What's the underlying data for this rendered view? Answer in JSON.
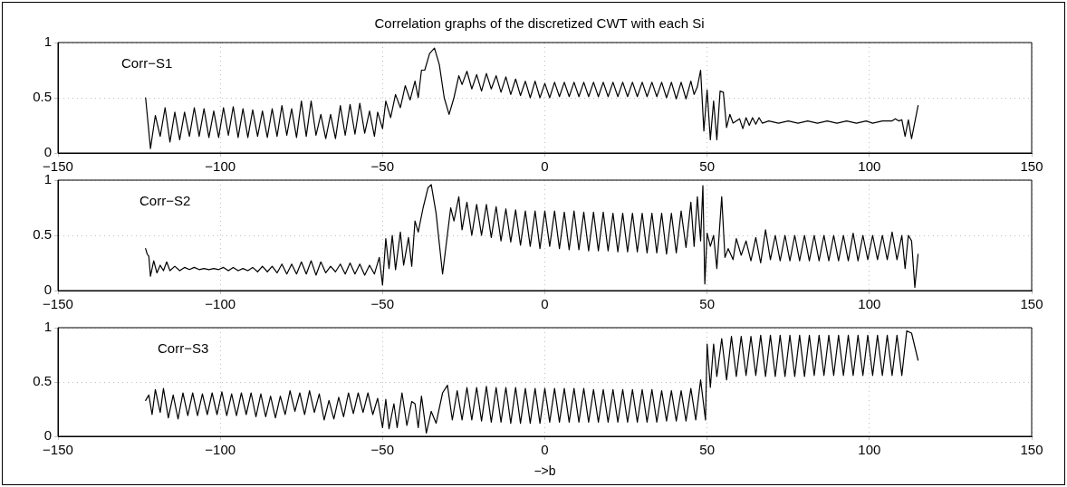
{
  "chart_data": [
    {
      "type": "line",
      "title": "Correlation graphs of the discretized CWT with each Si",
      "xlim": [
        -150,
        150
      ],
      "xticks": [
        -150,
        -100,
        -50,
        0,
        50,
        100,
        150
      ],
      "ylim": [
        0,
        1
      ],
      "yticks": [
        0,
        0.5,
        1
      ],
      "grid": true,
      "series": [
        {
          "name": "Corr−S1",
          "color": "#000000",
          "x": [
            -123,
            -121.5,
            -120,
            -118.5,
            -117,
            -115.5,
            -114,
            -112.5,
            -111,
            -109.5,
            -108,
            -106.5,
            -105,
            -103.5,
            -102,
            -100.5,
            -99,
            -97.5,
            -96,
            -94.5,
            -93,
            -91.5,
            -90,
            -88.5,
            -87,
            -85.5,
            -84,
            -82.5,
            -81,
            -79.5,
            -78,
            -76.5,
            -75,
            -73.5,
            -72,
            -70.5,
            -69,
            -67.5,
            -66,
            -64.5,
            -63,
            -61.5,
            -60,
            -58.5,
            -57,
            -55.5,
            -54,
            -52.5,
            -51.5,
            -50,
            -49,
            -47.5,
            -46,
            -44.5,
            -43,
            -41.5,
            -40,
            -39,
            -38,
            -37,
            -35.5,
            -34,
            -32.5,
            -31,
            -29.5,
            -28,
            -26.5,
            -25.5,
            -24,
            -22.5,
            -21,
            -19.5,
            -18,
            -16.5,
            -15,
            -13.5,
            -12,
            -10.5,
            -9,
            -7.5,
            -6,
            -4.5,
            -3,
            -1.5,
            0,
            1.5,
            3,
            4.5,
            6,
            7.5,
            9,
            10.5,
            12,
            13.5,
            15,
            16.5,
            18,
            19.5,
            21,
            22.5,
            24,
            25.5,
            27,
            28.5,
            30,
            31.5,
            33,
            34.5,
            36,
            37.5,
            39,
            40.5,
            42,
            43.5,
            45,
            46,
            47,
            48,
            49,
            50,
            51,
            52,
            53,
            54,
            55,
            56,
            57,
            58,
            60,
            61,
            62,
            63,
            64,
            65,
            66,
            67,
            69,
            72,
            75,
            78,
            81,
            84,
            87,
            90,
            93,
            96,
            99,
            101,
            104,
            107,
            108,
            109,
            110,
            111,
            112,
            113,
            115
          ],
          "values": [
            0.5,
            0.04,
            0.34,
            0.15,
            0.41,
            0.1,
            0.37,
            0.12,
            0.37,
            0.15,
            0.41,
            0.15,
            0.4,
            0.14,
            0.38,
            0.14,
            0.41,
            0.16,
            0.42,
            0.14,
            0.4,
            0.14,
            0.39,
            0.15,
            0.38,
            0.14,
            0.4,
            0.15,
            0.43,
            0.16,
            0.4,
            0.14,
            0.47,
            0.15,
            0.47,
            0.16,
            0.35,
            0.13,
            0.35,
            0.13,
            0.43,
            0.16,
            0.44,
            0.17,
            0.45,
            0.18,
            0.38,
            0.15,
            0.37,
            0.22,
            0.47,
            0.32,
            0.53,
            0.41,
            0.61,
            0.48,
            0.65,
            0.5,
            0.75,
            0.75,
            0.9,
            0.95,
            0.8,
            0.5,
            0.35,
            0.5,
            0.7,
            0.62,
            0.74,
            0.58,
            0.71,
            0.56,
            0.72,
            0.58,
            0.7,
            0.55,
            0.69,
            0.53,
            0.67,
            0.52,
            0.65,
            0.5,
            0.65,
            0.5,
            0.63,
            0.5,
            0.64,
            0.51,
            0.64,
            0.51,
            0.64,
            0.51,
            0.64,
            0.51,
            0.64,
            0.51,
            0.64,
            0.51,
            0.64,
            0.51,
            0.64,
            0.51,
            0.64,
            0.51,
            0.64,
            0.51,
            0.64,
            0.51,
            0.64,
            0.5,
            0.64,
            0.49,
            0.64,
            0.49,
            0.65,
            0.53,
            0.6,
            0.75,
            0.2,
            0.57,
            0.12,
            0.47,
            0.12,
            0.56,
            0.55,
            0.23,
            0.35,
            0.27,
            0.31,
            0.22,
            0.32,
            0.25,
            0.32,
            0.26,
            0.32,
            0.27,
            0.29,
            0.27,
            0.29,
            0.27,
            0.29,
            0.27,
            0.29,
            0.27,
            0.29,
            0.27,
            0.29,
            0.27,
            0.29,
            0.29,
            0.31,
            0.29,
            0.3,
            0.15,
            0.3,
            0.13,
            0.43
          ]
        }
      ]
    },
    {
      "type": "line",
      "xlim": [
        -150,
        150
      ],
      "xticks": [
        -150,
        -100,
        -50,
        0,
        50,
        100,
        150
      ],
      "ylim": [
        0,
        1
      ],
      "yticks": [
        0,
        0.5,
        1
      ],
      "grid": true,
      "series": [
        {
          "name": "Corr−S2",
          "color": "#000000",
          "x": [
            -123,
            -122.5,
            -122,
            -121.5,
            -120.5,
            -119.5,
            -118.5,
            -117.5,
            -116.5,
            -115.5,
            -114,
            -112.5,
            -111,
            -109.5,
            -108,
            -106.5,
            -105,
            -103.5,
            -102,
            -100.5,
            -99,
            -97.5,
            -96,
            -94.5,
            -93,
            -91.5,
            -90,
            -88.5,
            -87,
            -85.5,
            -84,
            -82.5,
            -81,
            -79.5,
            -78,
            -76.5,
            -75,
            -73.5,
            -72,
            -70.5,
            -69,
            -67.5,
            -66,
            -64.5,
            -63,
            -61.5,
            -60,
            -58.5,
            -57,
            -55.5,
            -54,
            -52.5,
            -51,
            -50,
            -49,
            -48,
            -47,
            -46,
            -44.5,
            -43.5,
            -42,
            -41,
            -40,
            -39,
            -37.5,
            -36,
            -35,
            -33.5,
            -31.5,
            -29,
            -28,
            -26.5,
            -25.5,
            -24,
            -22.5,
            -21,
            -19.5,
            -18,
            -16.5,
            -15,
            -13.5,
            -12,
            -10.5,
            -9,
            -7.5,
            -6,
            -4.5,
            -3,
            -1.5,
            0,
            1.5,
            3,
            4.5,
            6,
            7.5,
            9,
            10.5,
            12,
            13.5,
            15,
            16.5,
            18,
            19.5,
            21,
            22.5,
            24,
            25.5,
            27,
            28.5,
            30,
            31.5,
            33,
            34.5,
            36,
            37.5,
            39,
            40.5,
            42,
            43.5,
            45,
            46,
            47,
            48,
            48.7,
            49.3,
            50,
            51,
            52,
            53,
            54.5,
            55.5,
            56.5,
            58,
            59,
            60.5,
            62,
            63.5,
            65,
            66.5,
            68,
            69.5,
            71,
            72.5,
            74,
            75.5,
            77,
            78.5,
            80,
            81.5,
            83,
            84.5,
            86,
            87.5,
            89,
            90.5,
            92,
            93.5,
            95,
            96.5,
            98,
            99.5,
            101,
            102.5,
            104,
            105.5,
            107,
            108.5,
            110,
            111,
            112,
            113,
            114,
            115
          ],
          "values": [
            0.38,
            0.33,
            0.31,
            0.13,
            0.27,
            0.16,
            0.23,
            0.18,
            0.26,
            0.18,
            0.22,
            0.18,
            0.21,
            0.19,
            0.21,
            0.19,
            0.2,
            0.19,
            0.2,
            0.19,
            0.21,
            0.18,
            0.21,
            0.18,
            0.2,
            0.18,
            0.21,
            0.17,
            0.22,
            0.17,
            0.22,
            0.16,
            0.24,
            0.15,
            0.24,
            0.15,
            0.26,
            0.15,
            0.27,
            0.14,
            0.26,
            0.16,
            0.22,
            0.17,
            0.24,
            0.15,
            0.25,
            0.15,
            0.24,
            0.14,
            0.23,
            0.15,
            0.3,
            0.05,
            0.47,
            0.2,
            0.5,
            0.19,
            0.53,
            0.23,
            0.48,
            0.22,
            0.63,
            0.53,
            0.75,
            0.93,
            0.96,
            0.7,
            0.15,
            0.75,
            0.63,
            0.85,
            0.55,
            0.8,
            0.5,
            0.78,
            0.5,
            0.78,
            0.48,
            0.76,
            0.45,
            0.74,
            0.44,
            0.73,
            0.41,
            0.72,
            0.4,
            0.72,
            0.38,
            0.72,
            0.4,
            0.72,
            0.38,
            0.71,
            0.37,
            0.72,
            0.37,
            0.71,
            0.36,
            0.71,
            0.36,
            0.71,
            0.36,
            0.7,
            0.35,
            0.7,
            0.35,
            0.7,
            0.35,
            0.7,
            0.34,
            0.7,
            0.34,
            0.7,
            0.33,
            0.7,
            0.34,
            0.72,
            0.39,
            0.8,
            0.4,
            0.85,
            0.45,
            0.95,
            0.06,
            0.52,
            0.4,
            0.5,
            0.2,
            0.85,
            0.3,
            0.38,
            0.28,
            0.47,
            0.32,
            0.45,
            0.27,
            0.48,
            0.25,
            0.55,
            0.28,
            0.5,
            0.27,
            0.5,
            0.27,
            0.5,
            0.27,
            0.5,
            0.27,
            0.5,
            0.27,
            0.5,
            0.27,
            0.5,
            0.27,
            0.5,
            0.27,
            0.52,
            0.27,
            0.5,
            0.28,
            0.5,
            0.28,
            0.5,
            0.28,
            0.53,
            0.28,
            0.5,
            0.2,
            0.5,
            0.45,
            0.03,
            0.33
          ]
        }
      ]
    },
    {
      "type": "line",
      "xlabel": "−>b",
      "xlim": [
        -150,
        150
      ],
      "xticks": [
        -150,
        -100,
        -50,
        0,
        50,
        100,
        150
      ],
      "ylim": [
        0,
        1
      ],
      "yticks": [
        0,
        0.5,
        1
      ],
      "grid": true,
      "series": [
        {
          "name": "Corr−S3",
          "color": "#000000",
          "x": [
            -123,
            -122,
            -121,
            -120,
            -118.5,
            -117.5,
            -116,
            -114.5,
            -113,
            -111.5,
            -110,
            -108.5,
            -107,
            -105.5,
            -104,
            -102.5,
            -101,
            -99.5,
            -98,
            -96.5,
            -95,
            -93.5,
            -92,
            -90.5,
            -89,
            -87.5,
            -86,
            -84.5,
            -83,
            -81.5,
            -80,
            -78.5,
            -77,
            -75.5,
            -74,
            -72.5,
            -71,
            -69.5,
            -68,
            -66.5,
            -65,
            -63.5,
            -62,
            -60.5,
            -59,
            -57.5,
            -56,
            -54.5,
            -53,
            -51.5,
            -50,
            -49,
            -48,
            -46.5,
            -45.5,
            -44,
            -42.5,
            -41,
            -40,
            -39,
            -38,
            -36.5,
            -35,
            -33.5,
            -31.5,
            -30,
            -28.5,
            -27,
            -25.5,
            -24,
            -22.5,
            -21,
            -19.5,
            -18,
            -16.5,
            -15,
            -13.5,
            -12,
            -10.5,
            -9,
            -7.5,
            -6,
            -4.5,
            -3,
            -1.5,
            0,
            1.5,
            3,
            4.5,
            6,
            7.5,
            9,
            10.5,
            12,
            13.5,
            15,
            16.5,
            18,
            19.5,
            21,
            22.5,
            24,
            25.5,
            27,
            28.5,
            30,
            31.5,
            33,
            34.5,
            36,
            37.5,
            39,
            40.5,
            42,
            43.5,
            45,
            46.5,
            48,
            49.5,
            50,
            51,
            52,
            53,
            54.5,
            56,
            57.5,
            59,
            60.5,
            62,
            63.5,
            65,
            66.5,
            68,
            69.5,
            71,
            72.5,
            74,
            75.5,
            77,
            78.5,
            80,
            81.5,
            83,
            84.5,
            86,
            87.5,
            89,
            90.5,
            92,
            93.5,
            95,
            96.5,
            98,
            99.5,
            101,
            102.5,
            104,
            105.5,
            107,
            108.5,
            110,
            111.5,
            113,
            115
          ],
          "values": [
            0.33,
            0.38,
            0.2,
            0.43,
            0.22,
            0.44,
            0.17,
            0.38,
            0.16,
            0.4,
            0.19,
            0.4,
            0.19,
            0.39,
            0.2,
            0.4,
            0.2,
            0.41,
            0.19,
            0.39,
            0.19,
            0.4,
            0.2,
            0.4,
            0.18,
            0.39,
            0.18,
            0.37,
            0.17,
            0.37,
            0.2,
            0.42,
            0.23,
            0.4,
            0.2,
            0.42,
            0.22,
            0.39,
            0.15,
            0.33,
            0.16,
            0.36,
            0.18,
            0.4,
            0.21,
            0.4,
            0.22,
            0.4,
            0.2,
            0.35,
            0.08,
            0.34,
            0.07,
            0.3,
            0.08,
            0.4,
            0.1,
            0.32,
            0.3,
            0.08,
            0.37,
            0.03,
            0.23,
            0.12,
            0.4,
            0.47,
            0.15,
            0.42,
            0.15,
            0.45,
            0.15,
            0.45,
            0.14,
            0.46,
            0.13,
            0.45,
            0.13,
            0.45,
            0.12,
            0.45,
            0.12,
            0.44,
            0.12,
            0.44,
            0.12,
            0.44,
            0.13,
            0.44,
            0.13,
            0.44,
            0.13,
            0.44,
            0.13,
            0.44,
            0.13,
            0.43,
            0.13,
            0.43,
            0.13,
            0.43,
            0.13,
            0.43,
            0.13,
            0.43,
            0.13,
            0.43,
            0.13,
            0.43,
            0.13,
            0.42,
            0.14,
            0.42,
            0.14,
            0.42,
            0.14,
            0.44,
            0.15,
            0.52,
            0.15,
            0.85,
            0.45,
            0.85,
            0.55,
            0.9,
            0.52,
            0.92,
            0.55,
            0.92,
            0.56,
            0.92,
            0.56,
            0.93,
            0.55,
            0.93,
            0.55,
            0.93,
            0.55,
            0.93,
            0.55,
            0.93,
            0.55,
            0.93,
            0.56,
            0.93,
            0.56,
            0.93,
            0.56,
            0.93,
            0.56,
            0.93,
            0.56,
            0.93,
            0.56,
            0.93,
            0.56,
            0.93,
            0.56,
            0.93,
            0.56,
            0.93,
            0.56,
            0.97,
            0.95,
            0.7
          ]
        }
      ]
    }
  ]
}
